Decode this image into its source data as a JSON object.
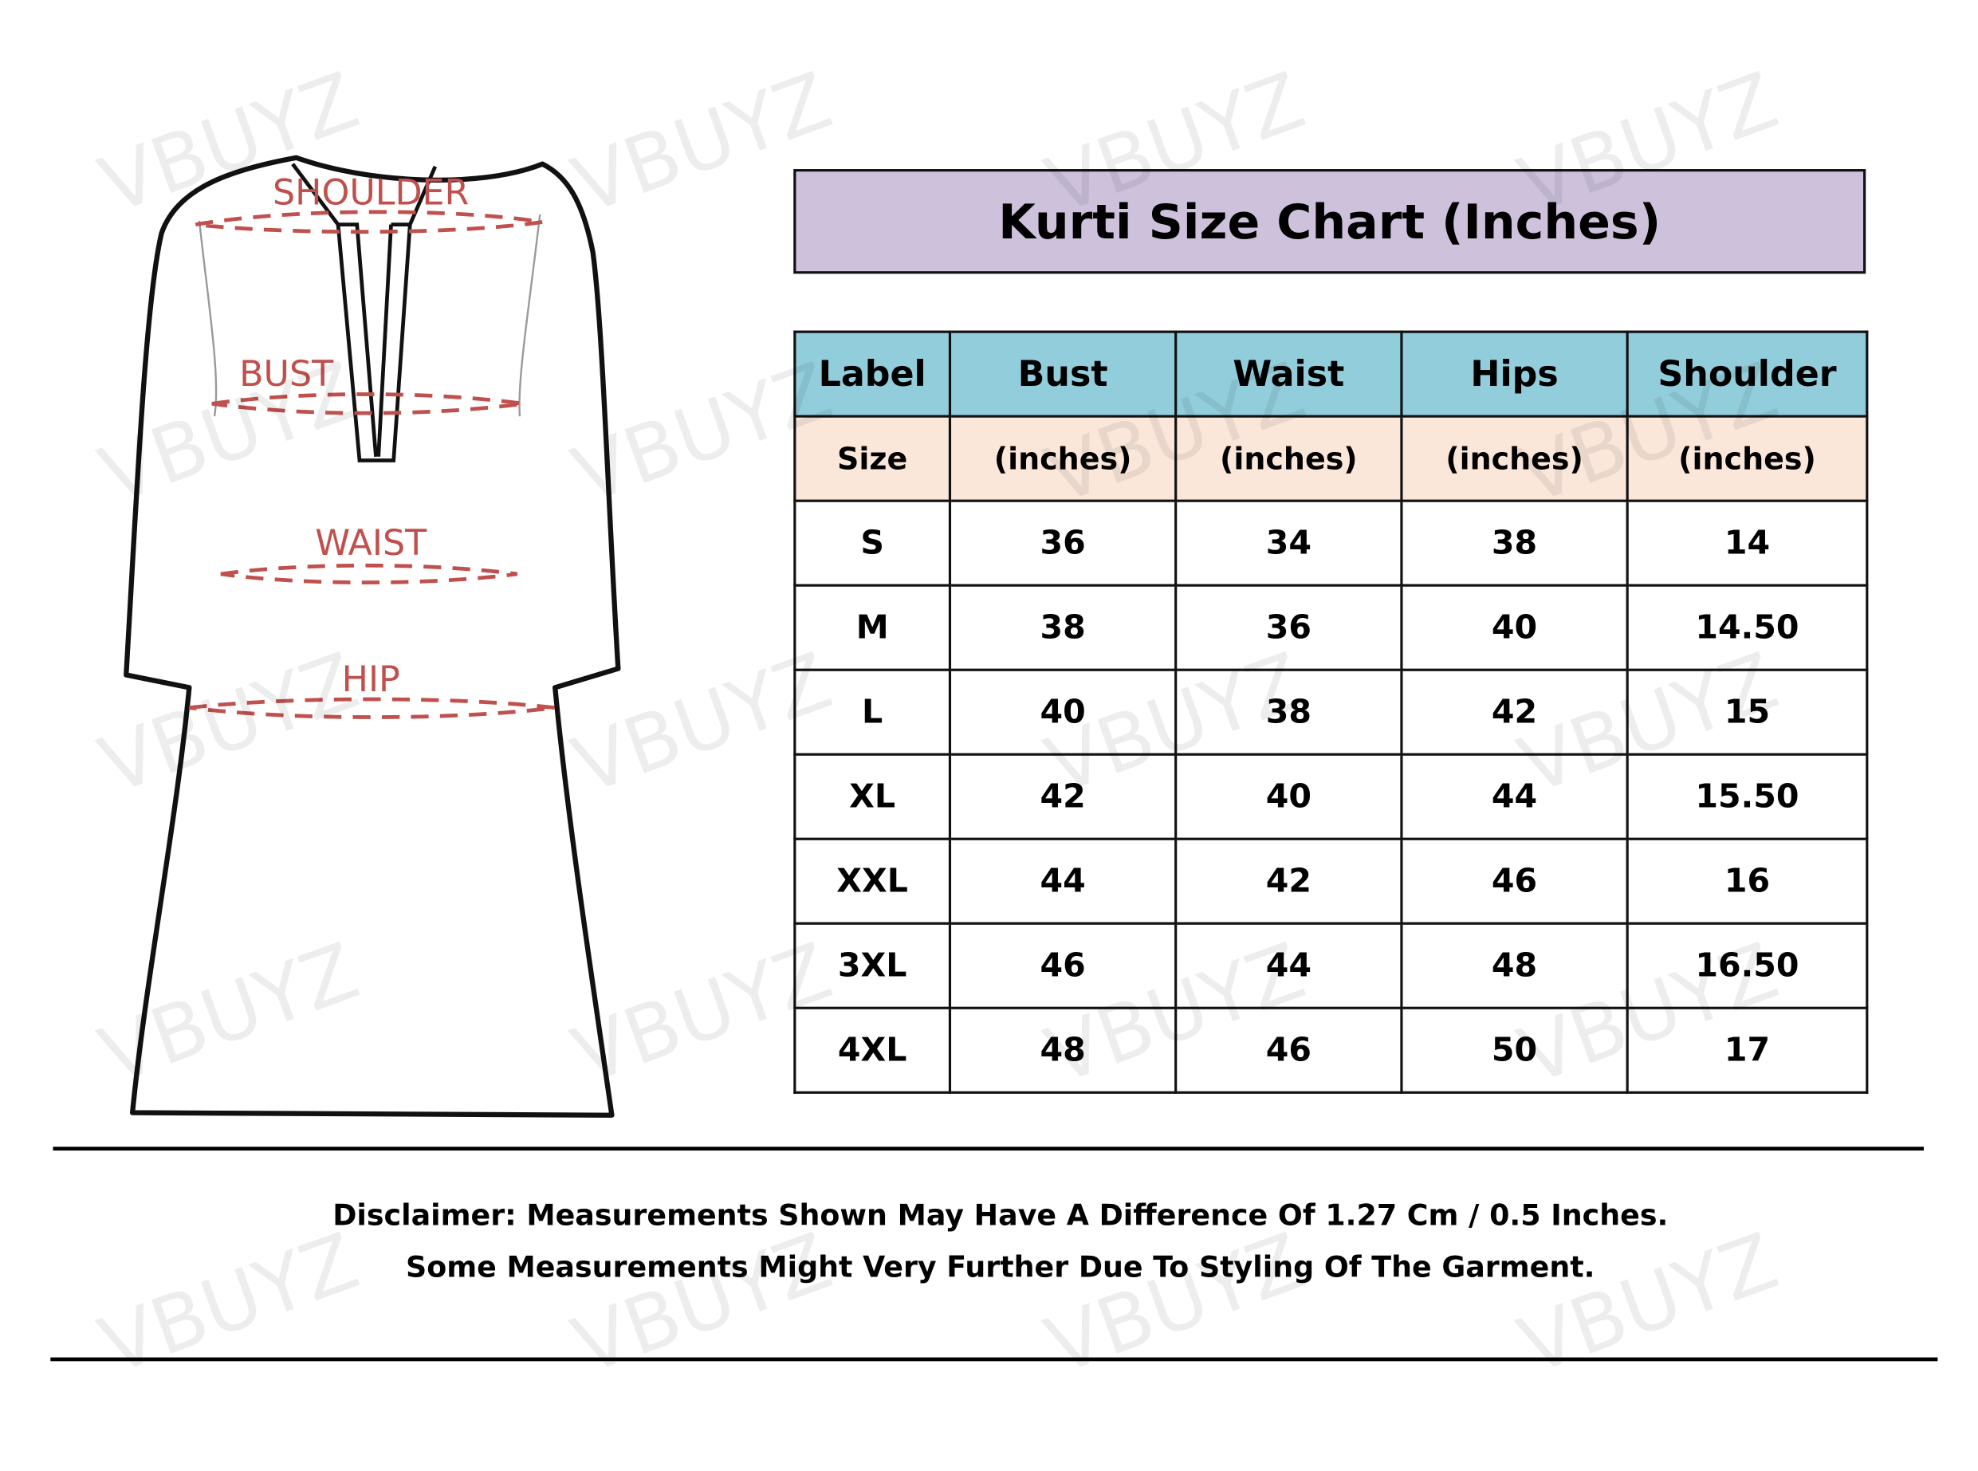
{
  "watermark": "VBUYZ",
  "diagram": {
    "labels": {
      "shoulder": "SHOULDER",
      "bust": "BUST",
      "waist": "WAIST",
      "hip": "HIP"
    },
    "label_color": "#c0504d"
  },
  "title": "Kurti Size Chart (Inches)",
  "colors": {
    "title_bg": "#cdc1dc",
    "header_bg": "#92cddc",
    "subheader_bg": "#fbe7da"
  },
  "table": {
    "headers": [
      "Label",
      "Bust",
      "Waist",
      "Hips",
      "Shoulder"
    ],
    "subheaders": [
      "Size",
      "(inches)",
      "(inches)",
      "(inches)",
      "(inches)"
    ],
    "rows": [
      [
        "S",
        "36",
        "34",
        "38",
        "14"
      ],
      [
        "M",
        "38",
        "36",
        "40",
        "14.50"
      ],
      [
        "L",
        "40",
        "38",
        "42",
        "15"
      ],
      [
        "XL",
        "42",
        "40",
        "44",
        "15.50"
      ],
      [
        "XXL",
        "44",
        "42",
        "46",
        "16"
      ],
      [
        "3XL",
        "46",
        "44",
        "48",
        "16.50"
      ],
      [
        "4XL",
        "48",
        "46",
        "50",
        "17"
      ]
    ]
  },
  "disclaimer": {
    "line1": "Disclaimer: Measurements Shown May Have A Difference Of 1.27 Cm / 0.5 Inches.",
    "line2": "Some Measurements Might Very Further Due To Styling Of The Garment."
  }
}
